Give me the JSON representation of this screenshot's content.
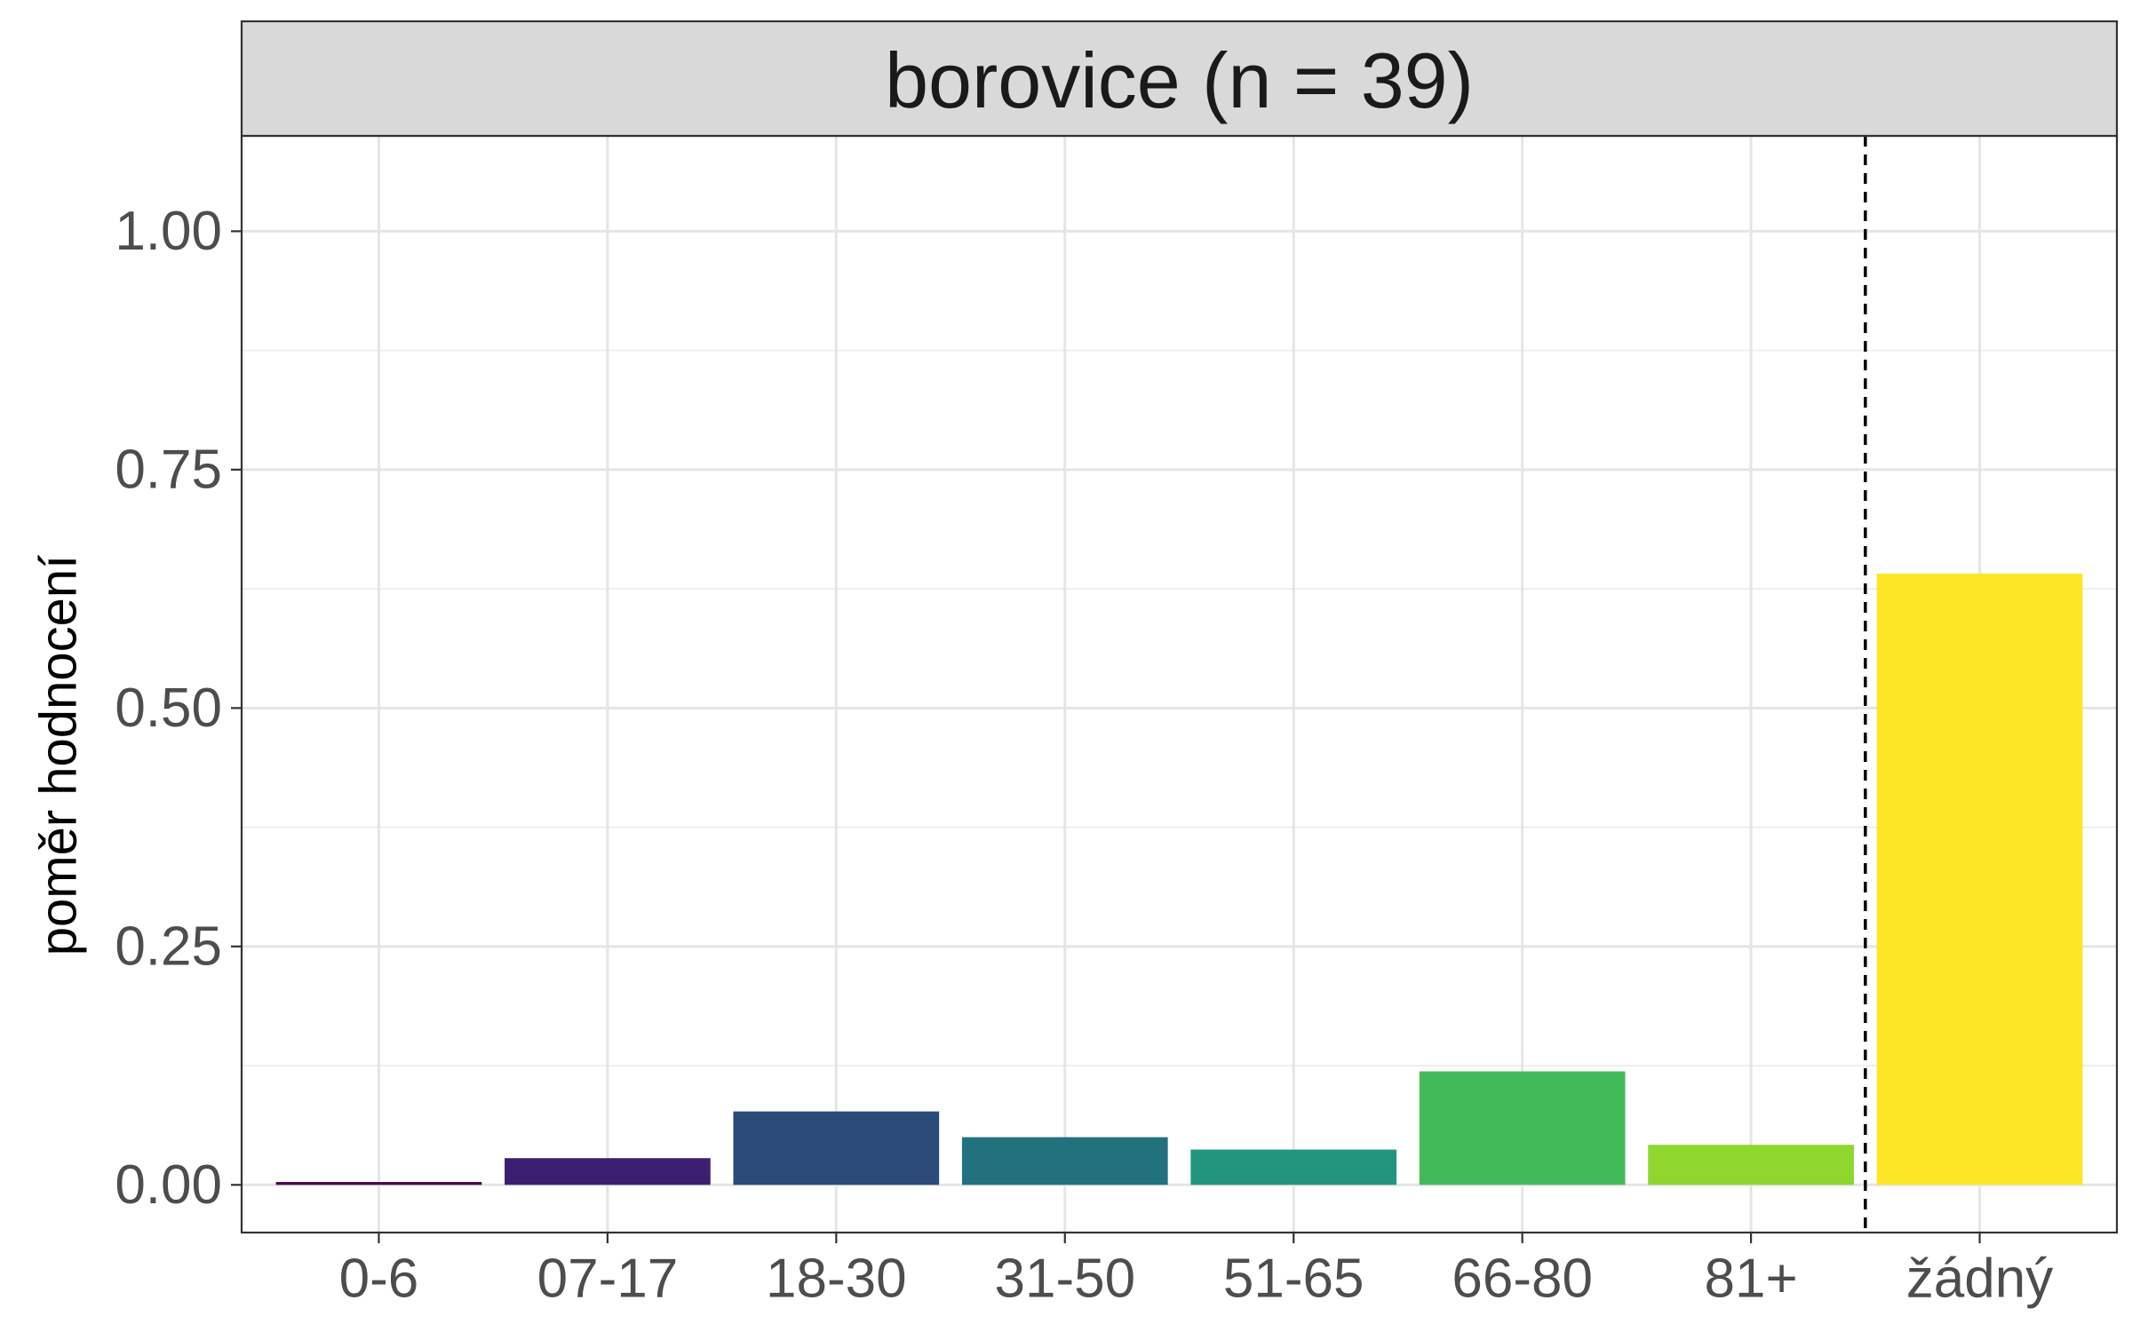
{
  "chart_data": {
    "type": "bar",
    "title": "borovice (n = 39)",
    "xlabel": "",
    "ylabel": "poměr hodnocení",
    "ylim": [
      -0.05,
      1.1
    ],
    "yticks": [
      0.0,
      0.25,
      0.5,
      0.75,
      1.0
    ],
    "ytick_labels": [
      "0.00",
      "0.25",
      "0.50",
      "0.75",
      "1.00"
    ],
    "categories": [
      "0-6",
      "07-17",
      "18-30",
      "31-50",
      "51-65",
      "66-80",
      "81+",
      "žádný"
    ],
    "values": [
      0.003,
      0.028,
      0.077,
      0.05,
      0.037,
      0.119,
      0.042,
      0.641
    ],
    "colors": [
      "#440154",
      "#3B1E6F",
      "#2C4A7A",
      "#21717F",
      "#22967D",
      "#43BA58",
      "#8FD62E",
      "#FDE725"
    ],
    "separator": {
      "after_category": "81+",
      "style": "dashed"
    },
    "grid": true,
    "legend": "none"
  }
}
